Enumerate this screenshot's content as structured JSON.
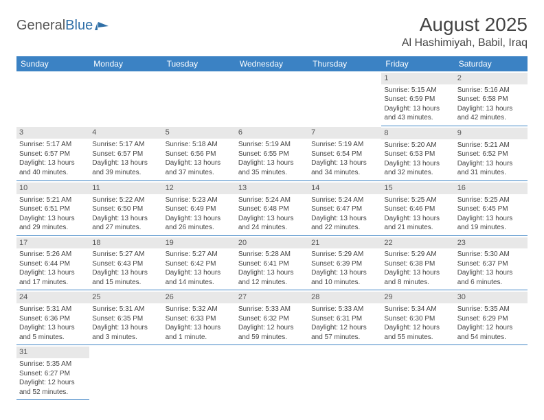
{
  "logo": {
    "text1": "General",
    "text2": "Blue"
  },
  "title": "August 2025",
  "location": "Al Hashimiyah, Babil, Iraq",
  "colors": {
    "header_bg": "#3b82c4",
    "header_text": "#ffffff",
    "daynum_bg": "#e8e8e8",
    "border": "#3b82c4",
    "logo_blue": "#2f6fa7"
  },
  "font": {
    "title_size": 28,
    "location_size": 16,
    "cell_size": 10,
    "header_size": 12
  },
  "day_headers": [
    "Sunday",
    "Monday",
    "Tuesday",
    "Wednesday",
    "Thursday",
    "Friday",
    "Saturday"
  ],
  "weeks": [
    [
      null,
      null,
      null,
      null,
      null,
      {
        "n": "1",
        "sr": "Sunrise: 5:15 AM",
        "ss": "Sunset: 6:59 PM",
        "d1": "Daylight: 13 hours",
        "d2": "and 43 minutes."
      },
      {
        "n": "2",
        "sr": "Sunrise: 5:16 AM",
        "ss": "Sunset: 6:58 PM",
        "d1": "Daylight: 13 hours",
        "d2": "and 42 minutes."
      }
    ],
    [
      {
        "n": "3",
        "sr": "Sunrise: 5:17 AM",
        "ss": "Sunset: 6:57 PM",
        "d1": "Daylight: 13 hours",
        "d2": "and 40 minutes."
      },
      {
        "n": "4",
        "sr": "Sunrise: 5:17 AM",
        "ss": "Sunset: 6:57 PM",
        "d1": "Daylight: 13 hours",
        "d2": "and 39 minutes."
      },
      {
        "n": "5",
        "sr": "Sunrise: 5:18 AM",
        "ss": "Sunset: 6:56 PM",
        "d1": "Daylight: 13 hours",
        "d2": "and 37 minutes."
      },
      {
        "n": "6",
        "sr": "Sunrise: 5:19 AM",
        "ss": "Sunset: 6:55 PM",
        "d1": "Daylight: 13 hours",
        "d2": "and 35 minutes."
      },
      {
        "n": "7",
        "sr": "Sunrise: 5:19 AM",
        "ss": "Sunset: 6:54 PM",
        "d1": "Daylight: 13 hours",
        "d2": "and 34 minutes."
      },
      {
        "n": "8",
        "sr": "Sunrise: 5:20 AM",
        "ss": "Sunset: 6:53 PM",
        "d1": "Daylight: 13 hours",
        "d2": "and 32 minutes."
      },
      {
        "n": "9",
        "sr": "Sunrise: 5:21 AM",
        "ss": "Sunset: 6:52 PM",
        "d1": "Daylight: 13 hours",
        "d2": "and 31 minutes."
      }
    ],
    [
      {
        "n": "10",
        "sr": "Sunrise: 5:21 AM",
        "ss": "Sunset: 6:51 PM",
        "d1": "Daylight: 13 hours",
        "d2": "and 29 minutes."
      },
      {
        "n": "11",
        "sr": "Sunrise: 5:22 AM",
        "ss": "Sunset: 6:50 PM",
        "d1": "Daylight: 13 hours",
        "d2": "and 27 minutes."
      },
      {
        "n": "12",
        "sr": "Sunrise: 5:23 AM",
        "ss": "Sunset: 6:49 PM",
        "d1": "Daylight: 13 hours",
        "d2": "and 26 minutes."
      },
      {
        "n": "13",
        "sr": "Sunrise: 5:24 AM",
        "ss": "Sunset: 6:48 PM",
        "d1": "Daylight: 13 hours",
        "d2": "and 24 minutes."
      },
      {
        "n": "14",
        "sr": "Sunrise: 5:24 AM",
        "ss": "Sunset: 6:47 PM",
        "d1": "Daylight: 13 hours",
        "d2": "and 22 minutes."
      },
      {
        "n": "15",
        "sr": "Sunrise: 5:25 AM",
        "ss": "Sunset: 6:46 PM",
        "d1": "Daylight: 13 hours",
        "d2": "and 21 minutes."
      },
      {
        "n": "16",
        "sr": "Sunrise: 5:25 AM",
        "ss": "Sunset: 6:45 PM",
        "d1": "Daylight: 13 hours",
        "d2": "and 19 minutes."
      }
    ],
    [
      {
        "n": "17",
        "sr": "Sunrise: 5:26 AM",
        "ss": "Sunset: 6:44 PM",
        "d1": "Daylight: 13 hours",
        "d2": "and 17 minutes."
      },
      {
        "n": "18",
        "sr": "Sunrise: 5:27 AM",
        "ss": "Sunset: 6:43 PM",
        "d1": "Daylight: 13 hours",
        "d2": "and 15 minutes."
      },
      {
        "n": "19",
        "sr": "Sunrise: 5:27 AM",
        "ss": "Sunset: 6:42 PM",
        "d1": "Daylight: 13 hours",
        "d2": "and 14 minutes."
      },
      {
        "n": "20",
        "sr": "Sunrise: 5:28 AM",
        "ss": "Sunset: 6:41 PM",
        "d1": "Daylight: 13 hours",
        "d2": "and 12 minutes."
      },
      {
        "n": "21",
        "sr": "Sunrise: 5:29 AM",
        "ss": "Sunset: 6:39 PM",
        "d1": "Daylight: 13 hours",
        "d2": "and 10 minutes."
      },
      {
        "n": "22",
        "sr": "Sunrise: 5:29 AM",
        "ss": "Sunset: 6:38 PM",
        "d1": "Daylight: 13 hours",
        "d2": "and 8 minutes."
      },
      {
        "n": "23",
        "sr": "Sunrise: 5:30 AM",
        "ss": "Sunset: 6:37 PM",
        "d1": "Daylight: 13 hours",
        "d2": "and 6 minutes."
      }
    ],
    [
      {
        "n": "24",
        "sr": "Sunrise: 5:31 AM",
        "ss": "Sunset: 6:36 PM",
        "d1": "Daylight: 13 hours",
        "d2": "and 5 minutes."
      },
      {
        "n": "25",
        "sr": "Sunrise: 5:31 AM",
        "ss": "Sunset: 6:35 PM",
        "d1": "Daylight: 13 hours",
        "d2": "and 3 minutes."
      },
      {
        "n": "26",
        "sr": "Sunrise: 5:32 AM",
        "ss": "Sunset: 6:33 PM",
        "d1": "Daylight: 13 hours",
        "d2": "and 1 minute."
      },
      {
        "n": "27",
        "sr": "Sunrise: 5:33 AM",
        "ss": "Sunset: 6:32 PM",
        "d1": "Daylight: 12 hours",
        "d2": "and 59 minutes."
      },
      {
        "n": "28",
        "sr": "Sunrise: 5:33 AM",
        "ss": "Sunset: 6:31 PM",
        "d1": "Daylight: 12 hours",
        "d2": "and 57 minutes."
      },
      {
        "n": "29",
        "sr": "Sunrise: 5:34 AM",
        "ss": "Sunset: 6:30 PM",
        "d1": "Daylight: 12 hours",
        "d2": "and 55 minutes."
      },
      {
        "n": "30",
        "sr": "Sunrise: 5:35 AM",
        "ss": "Sunset: 6:29 PM",
        "d1": "Daylight: 12 hours",
        "d2": "and 54 minutes."
      }
    ],
    [
      {
        "n": "31",
        "sr": "Sunrise: 5:35 AM",
        "ss": "Sunset: 6:27 PM",
        "d1": "Daylight: 12 hours",
        "d2": "and 52 minutes."
      },
      null,
      null,
      null,
      null,
      null,
      null
    ]
  ]
}
